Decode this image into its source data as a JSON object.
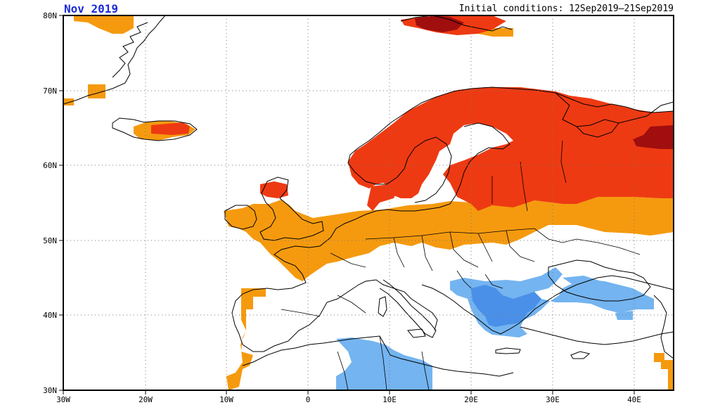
{
  "header": {
    "left_title": "Nov 2019",
    "right_title": "Initial conditions: 12Sep2019–21Sep2019"
  },
  "axes": {
    "lon_labels": [
      "30W",
      "20W",
      "10W",
      "0",
      "10E",
      "20E",
      "30E",
      "40E"
    ],
    "lat_labels": [
      "30N",
      "40N",
      "50N",
      "60N",
      "70N",
      "80N"
    ],
    "grid": true,
    "grid_style": "dotted"
  },
  "colors": {
    "warm_light": "#f59a0f",
    "warm_strong": "#ee3a12",
    "warm_extreme": "#a00e0e",
    "cool_light": "#74b4f0",
    "cool_strong": "#4a90e8",
    "frame": "#000000",
    "coast": "#000000"
  },
  "chart_data": {
    "type": "heatmap",
    "title": "Nov 2019",
    "subtitle": "Initial conditions: 12Sep2019–21Sep2019",
    "lon_range": [
      -30,
      45
    ],
    "lat_range": [
      30,
      80
    ],
    "categories_by_color": [
      "warm_light",
      "warm_strong",
      "warm_extreme",
      "cool_light",
      "cool_strong"
    ],
    "regions": [
      {
        "name": "Scandinavia and NW Russia",
        "category": "warm_strong"
      },
      {
        "name": "Far NE Russia",
        "category": "warm_extreme"
      },
      {
        "name": "Svalbard area",
        "category": "warm_extreme"
      },
      {
        "name": "Iceland",
        "category": "warm_light"
      },
      {
        "name": "Western and Central Europe",
        "category": "warm_light"
      },
      {
        "name": "Balkans and Turkey",
        "category": "cool_light"
      },
      {
        "name": "North Africa (Tunisia/Algeria)",
        "category": "cool_light"
      }
    ]
  }
}
